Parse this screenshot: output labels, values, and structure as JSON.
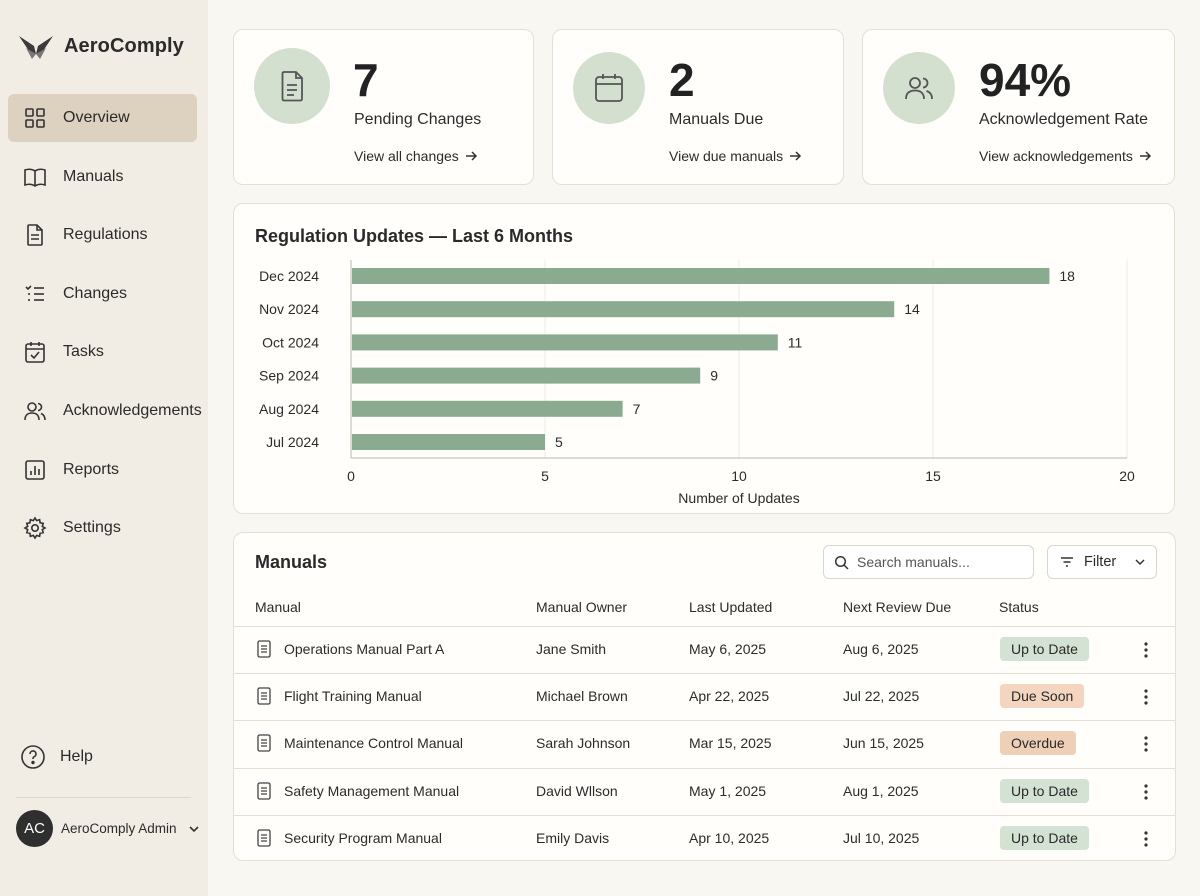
{
  "app": {
    "name": "AeroComply"
  },
  "sidebar": {
    "items": [
      {
        "label": "Overview",
        "icon": "grid-icon",
        "active": true
      },
      {
        "label": "Manuals",
        "icon": "book-icon"
      },
      {
        "label": "Regulations",
        "icon": "document-icon"
      },
      {
        "label": "Changes",
        "icon": "list-check-icon"
      },
      {
        "label": "Tasks",
        "icon": "calendar-check-icon"
      },
      {
        "label": "Acknowledgements",
        "icon": "users-icon"
      },
      {
        "label": "Reports",
        "icon": "bar-chart-icon"
      },
      {
        "label": "Settings",
        "icon": "gear-icon"
      }
    ],
    "help_label": "Help",
    "user": {
      "initials": "AC",
      "name": "AeroComply Admin"
    }
  },
  "stats": [
    {
      "value": "7",
      "label": "Pending Changes",
      "link": "View all changes",
      "icon": "document-icon"
    },
    {
      "value": "2",
      "label": "Manuals Due",
      "link": "View due manuals",
      "icon": "calendar-icon"
    },
    {
      "value": "94%",
      "label": "Acknowledgement Rate",
      "link": "View acknowledgements",
      "icon": "users-icon"
    }
  ],
  "chart_data": {
    "type": "bar",
    "orientation": "horizontal",
    "title": "Regulation Updates — Last 6 Months",
    "categories": [
      "Dec 2024",
      "Nov 2024",
      "Oct 2024",
      "Sep 2024",
      "Aug 2024",
      "Jul 2024"
    ],
    "values": [
      18,
      14,
      11,
      9,
      7,
      5
    ],
    "xlabel": "Number of Updates",
    "ylabel": "",
    "xlim": [
      0,
      20
    ],
    "xticks": [
      0,
      5,
      10,
      15,
      20
    ],
    "grid": true,
    "data_labels": true,
    "color": "#8aab8f"
  },
  "manuals": {
    "title": "Manuals",
    "search_placeholder": "Search manuals...",
    "filter_label": "Filter",
    "columns": [
      "Manual",
      "Manual Owner",
      "Last Updated",
      "Next Review Due",
      "Status"
    ],
    "rows": [
      {
        "manual": "Operations Manual Part A",
        "owner": "Jane Smith",
        "updated": "May 6, 2025",
        "review": "Aug 6, 2025",
        "status": "Up to Date",
        "status_kind": "ok"
      },
      {
        "manual": "Flight Training Manual",
        "owner": "Michael Brown",
        "updated": "Apr 22, 2025",
        "review": "Jul 22, 2025",
        "status": "Due Soon",
        "status_kind": "warn"
      },
      {
        "manual": "Maintenance Control Manual",
        "owner": "Sarah Johnson",
        "updated": "Mar 15, 2025",
        "review": "Jun 15, 2025",
        "status": "Overdue",
        "status_kind": "bad"
      },
      {
        "manual": "Safety Management Manual",
        "owner": "David Wllson",
        "updated": "May 1, 2025",
        "review": "Aug 1, 2025",
        "status": "Up to Date",
        "status_kind": "ok"
      },
      {
        "manual": "Security Program Manual",
        "owner": "Emily Davis",
        "updated": "Apr 10, 2025",
        "review": "Jul 10, 2025",
        "status": "Up to Date",
        "status_kind": "ok"
      }
    ]
  },
  "colors": {
    "accent_green": "#8aab8f",
    "badge_ok_bg": "#d3e2d2",
    "badge_warn_bg": "#f4d5c0",
    "badge_bad_bg": "#eed0b6",
    "sidebar_active": "#ddd1bf"
  }
}
